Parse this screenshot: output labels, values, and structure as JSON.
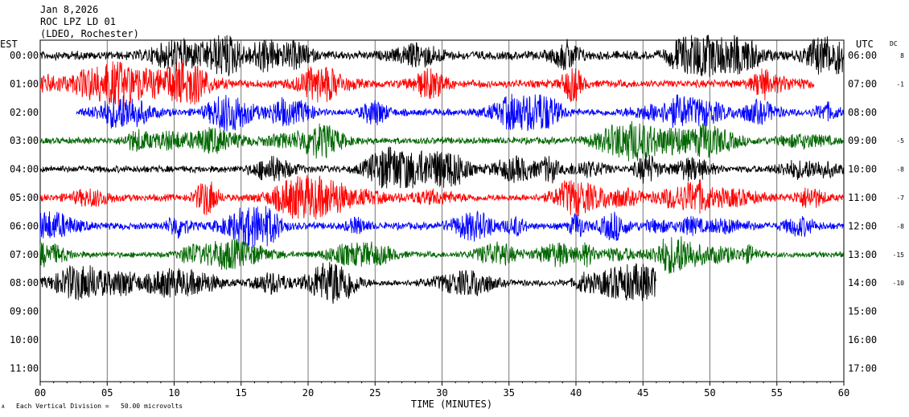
{
  "header": {
    "date": "Jan 8,2026",
    "station": "ROC LPZ LD 01",
    "location": "(LDEO, Rochester)"
  },
  "footer": {
    "scale_note": "Each Vertical Division =   50.00 microvolts",
    "corner_mark": "A"
  },
  "chart_data": {
    "type": "line",
    "title": "",
    "xlabel": "TIME (MINUTES)",
    "x_ticks": [
      "00",
      "05",
      "10",
      "15",
      "20",
      "25",
      "30",
      "35",
      "40",
      "45",
      "50",
      "55",
      "60"
    ],
    "xlim": [
      0,
      60
    ],
    "left_axis_label": "EST",
    "right_axis_label": "UTC",
    "dc_label": "DC",
    "grid": "vertical every 5 minutes",
    "colors": {
      "black": "#000000",
      "red": "#ff0000",
      "blue": "#0000ff",
      "green": "#006600"
    },
    "rows": [
      {
        "est": "00:00",
        "utc": "06:00",
        "dc": "8",
        "color": "#000000",
        "start_min": 0,
        "end_min": 60,
        "amp": 1.25
      },
      {
        "est": "01:00",
        "utc": "07:00",
        "dc": "-1",
        "color": "#ff0000",
        "start_min": 0,
        "end_min": 57.8,
        "amp": 1.1
      },
      {
        "est": "02:00",
        "utc": "08:00",
        "dc": "",
        "color": "#0000ff",
        "start_min": 2.7,
        "end_min": 60,
        "amp": 1.0
      },
      {
        "est": "03:00",
        "utc": "09:00",
        "dc": "-5",
        "color": "#006600",
        "start_min": 0,
        "end_min": 60,
        "amp": 0.95
      },
      {
        "est": "04:00",
        "utc": "10:00",
        "dc": "-8",
        "color": "#000000",
        "start_min": 0,
        "end_min": 60,
        "amp": 1.0
      },
      {
        "est": "05:00",
        "utc": "11:00",
        "dc": "-7",
        "color": "#ff0000",
        "start_min": 0,
        "end_min": 60,
        "amp": 1.0
      },
      {
        "est": "06:00",
        "utc": "12:00",
        "dc": "-8",
        "color": "#0000ff",
        "start_min": 0,
        "end_min": 60,
        "amp": 1.0
      },
      {
        "est": "07:00",
        "utc": "13:00",
        "dc": "-15",
        "color": "#006600",
        "start_min": 0,
        "end_min": 60,
        "amp": 0.85
      },
      {
        "est": "08:00",
        "utc": "14:00",
        "dc": "-10",
        "color": "#000000",
        "start_min": 0,
        "end_min": 46,
        "amp": 0.9
      },
      {
        "est": "09:00",
        "utc": "15:00",
        "dc": "",
        "color": "#000000",
        "start_min": 0,
        "end_min": 0,
        "amp": 0
      },
      {
        "est": "10:00",
        "utc": "16:00",
        "dc": "",
        "color": "#000000",
        "start_min": 0,
        "end_min": 0,
        "amp": 0
      },
      {
        "est": "11:00",
        "utc": "17:00",
        "dc": "",
        "color": "#000000",
        "start_min": 0,
        "end_min": 0,
        "amp": 0
      }
    ]
  }
}
